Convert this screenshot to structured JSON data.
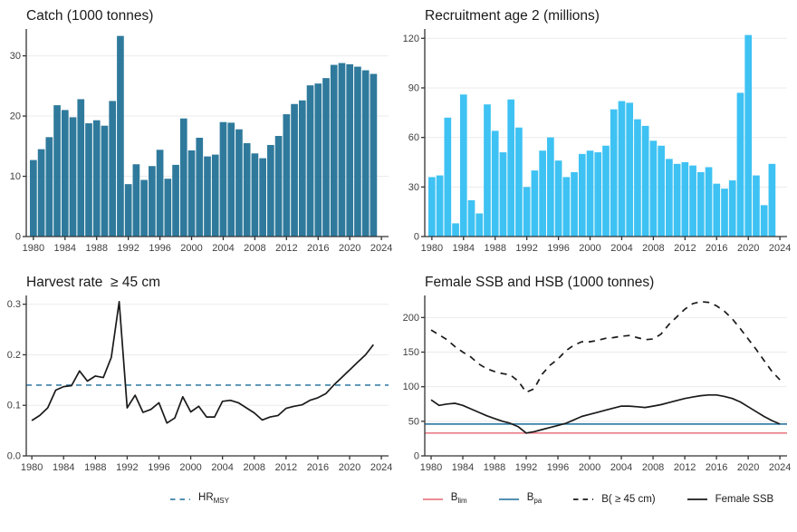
{
  "figure": {
    "background": "#ffffff",
    "grid_color": "#ebebeb",
    "axis_color": "#333333",
    "tick_text_color": "#404040"
  },
  "chart_data": [
    {
      "key": "catch",
      "type": "bar",
      "title": "Catch (1000 tonnes)",
      "xlabel": "",
      "ylabel": "",
      "color": "#2f7a9c",
      "grid": true,
      "x": [
        1980,
        1981,
        1982,
        1983,
        1984,
        1985,
        1986,
        1987,
        1988,
        1989,
        1990,
        1991,
        1992,
        1993,
        1994,
        1995,
        1996,
        1997,
        1998,
        1999,
        2000,
        2001,
        2002,
        2003,
        2004,
        2005,
        2006,
        2007,
        2008,
        2009,
        2010,
        2011,
        2012,
        2013,
        2014,
        2015,
        2016,
        2017,
        2018,
        2019,
        2020,
        2021,
        2022,
        2023
      ],
      "values": [
        12.7,
        14.5,
        16.5,
        21.8,
        21.0,
        19.8,
        22.8,
        18.8,
        19.3,
        18.4,
        22.5,
        33.3,
        8.7,
        12.0,
        9.4,
        11.7,
        14.4,
        9.6,
        11.9,
        19.6,
        14.3,
        16.4,
        13.3,
        13.6,
        19.0,
        18.9,
        17.8,
        15.5,
        13.8,
        13.0,
        15.2,
        16.7,
        20.3,
        22.0,
        22.6,
        25.1,
        25.4,
        26.3,
        28.5,
        28.8,
        28.6,
        28.2,
        27.6,
        27.0
      ],
      "xlim": [
        1979.1,
        2024.9
      ],
      "ylim": [
        0,
        34
      ],
      "yticks": [
        0,
        10,
        20,
        30
      ],
      "ytick_labels": [
        "0",
        "10",
        "20",
        "30"
      ],
      "xticks": [
        1980,
        1984,
        1988,
        1992,
        1996,
        2000,
        2004,
        2008,
        2012,
        2016,
        2020,
        2024
      ]
    },
    {
      "key": "recruitment",
      "type": "bar",
      "title": "Recruitment age 2 (millions)",
      "xlabel": "",
      "ylabel": "",
      "color": "#3ec2f3",
      "grid": true,
      "x": [
        1980,
        1981,
        1982,
        1983,
        1984,
        1985,
        1986,
        1987,
        1988,
        1989,
        1990,
        1991,
        1992,
        1993,
        1994,
        1995,
        1996,
        1997,
        1998,
        1999,
        2000,
        2001,
        2002,
        2003,
        2004,
        2005,
        2006,
        2007,
        2008,
        2009,
        2010,
        2011,
        2012,
        2013,
        2014,
        2015,
        2016,
        2017,
        2018,
        2019,
        2020,
        2021,
        2022,
        2023
      ],
      "values": [
        36,
        37,
        72,
        8,
        86,
        22,
        14,
        80,
        64,
        51,
        83,
        66,
        30,
        40,
        52,
        60,
        46,
        36,
        39,
        50,
        52,
        51,
        55,
        77,
        82,
        81,
        71,
        67,
        58,
        55,
        47,
        44,
        45,
        43,
        39,
        42,
        32,
        29,
        34,
        87,
        122,
        37,
        19,
        44
      ],
      "xlim": [
        1979.1,
        2024.9
      ],
      "ylim": [
        0,
        124
      ],
      "yticks": [
        0,
        30,
        60,
        90,
        120
      ],
      "ytick_labels": [
        "0",
        "30",
        "60",
        "90",
        "120"
      ],
      "xticks": [
        1980,
        1984,
        1988,
        1992,
        1996,
        2000,
        2004,
        2008,
        2012,
        2016,
        2020,
        2024
      ]
    },
    {
      "key": "harvest-rate",
      "type": "line",
      "title": "Harvest rate  ≥ 45 cm",
      "xlabel": "",
      "ylabel": "",
      "grid": true,
      "legend_position": "bottom",
      "x": [
        1980,
        1981,
        1982,
        1983,
        1984,
        1985,
        1986,
        1987,
        1988,
        1989,
        1990,
        1991,
        1992,
        1993,
        1994,
        1995,
        1996,
        1997,
        1998,
        1999,
        2000,
        2001,
        2002,
        2003,
        2004,
        2005,
        2006,
        2007,
        2008,
        2009,
        2010,
        2011,
        2012,
        2013,
        2014,
        2015,
        2016,
        2017,
        2018,
        2019,
        2020,
        2021,
        2022,
        2023
      ],
      "series": [
        {
          "name": "Harvest rate",
          "color": "#1a1a1a",
          "dash": null,
          "values": [
            0.07,
            0.08,
            0.095,
            0.13,
            0.137,
            0.139,
            0.168,
            0.148,
            0.158,
            0.155,
            0.195,
            0.305,
            0.095,
            0.12,
            0.086,
            0.092,
            0.105,
            0.065,
            0.075,
            0.117,
            0.087,
            0.098,
            0.077,
            0.077,
            0.108,
            0.11,
            0.105,
            0.095,
            0.085,
            0.071,
            0.077,
            0.08,
            0.094,
            0.098,
            0.101,
            0.11,
            0.115,
            0.123,
            0.14,
            0.155,
            0.17,
            0.185,
            0.2,
            0.22
          ]
        }
      ],
      "reflines": [
        {
          "name": "HRmsy",
          "value": 0.14,
          "color": "#3a80a8",
          "dash": "6,5"
        }
      ],
      "xlim": [
        1979.3,
        2024.9
      ],
      "ylim": [
        0,
        0.312
      ],
      "yticks": [
        0,
        0.1,
        0.2,
        0.3
      ],
      "ytick_labels": [
        "0.0",
        "0.1",
        "0.2",
        "0.3"
      ],
      "xticks": [
        1980,
        1984,
        1988,
        1992,
        1996,
        2000,
        2004,
        2008,
        2012,
        2016,
        2020,
        2024
      ],
      "legend": [
        {
          "key": "hr-msy",
          "main": "HR",
          "sub": "MSY",
          "color": "#3a80a8",
          "dash": true
        }
      ]
    },
    {
      "key": "ssb",
      "type": "line",
      "title": "Female SSB and HSB (1000 tonnes)",
      "xlabel": "",
      "ylabel": "",
      "grid": true,
      "legend_position": "bottom",
      "x": [
        1980,
        1981,
        1982,
        1983,
        1984,
        1985,
        1986,
        1987,
        1988,
        1989,
        1990,
        1991,
        1992,
        1993,
        1994,
        1995,
        1996,
        1997,
        1998,
        1999,
        2000,
        2001,
        2002,
        2003,
        2004,
        2005,
        2006,
        2007,
        2008,
        2009,
        2010,
        2011,
        2012,
        2013,
        2014,
        2015,
        2016,
        2017,
        2018,
        2019,
        2020,
        2021,
        2022,
        2023,
        2024
      ],
      "series": [
        {
          "name": "B(≥45 cm)",
          "color": "#1a1a1a",
          "dash": "7,6",
          "values": [
            182,
            175,
            168,
            158,
            150,
            143,
            133,
            126,
            122,
            119,
            117,
            108,
            92,
            97,
            118,
            131,
            140,
            152,
            160,
            165,
            165,
            167,
            170,
            171,
            173,
            174,
            171,
            168,
            169,
            176,
            190,
            201,
            212,
            220,
            223,
            222,
            217,
            209,
            198,
            184,
            169,
            154,
            138,
            122,
            110
          ]
        },
        {
          "name": "Female SSB",
          "color": "#1a1a1a",
          "dash": null,
          "values": [
            81,
            73,
            75,
            76,
            73,
            68,
            63,
            58,
            54,
            50,
            47,
            42,
            33,
            35,
            38,
            41,
            44,
            47,
            52,
            57,
            60,
            63,
            66,
            69,
            72,
            72,
            71,
            70,
            72,
            74,
            77,
            80,
            83,
            85,
            87,
            88,
            88,
            86,
            83,
            78,
            71,
            64,
            57,
            51,
            46
          ]
        }
      ],
      "reflines": [
        {
          "name": "Bpa",
          "value": 46,
          "color": "#3a80a8",
          "dash": null
        },
        {
          "name": "Blim",
          "value": 33,
          "color": "#ea7d86",
          "dash": null
        }
      ],
      "xlim": [
        1979.2,
        2024.9
      ],
      "ylim": [
        0,
        228
      ],
      "yticks": [
        0,
        50,
        100,
        150,
        200
      ],
      "ytick_labels": [
        "0",
        "50",
        "100",
        "150",
        "200"
      ],
      "xticks": [
        1980,
        1984,
        1988,
        1992,
        1996,
        2000,
        2004,
        2008,
        2012,
        2016,
        2020,
        2024
      ],
      "legend": [
        {
          "key": "b-lim",
          "main": "B",
          "sub": "lim",
          "color": "#ea7d86",
          "dash": false
        },
        {
          "key": "b-pa",
          "main": "B",
          "sub": "pa",
          "color": "#3a80a8",
          "dash": false
        },
        {
          "key": "b-45cm",
          "main": "B( ≥ 45 cm)",
          "sub": "",
          "color": "#1a1a1a",
          "dash": true
        },
        {
          "key": "female-ssb",
          "main": "Female SSB",
          "sub": "",
          "color": "#1a1a1a",
          "dash": false
        }
      ]
    }
  ]
}
